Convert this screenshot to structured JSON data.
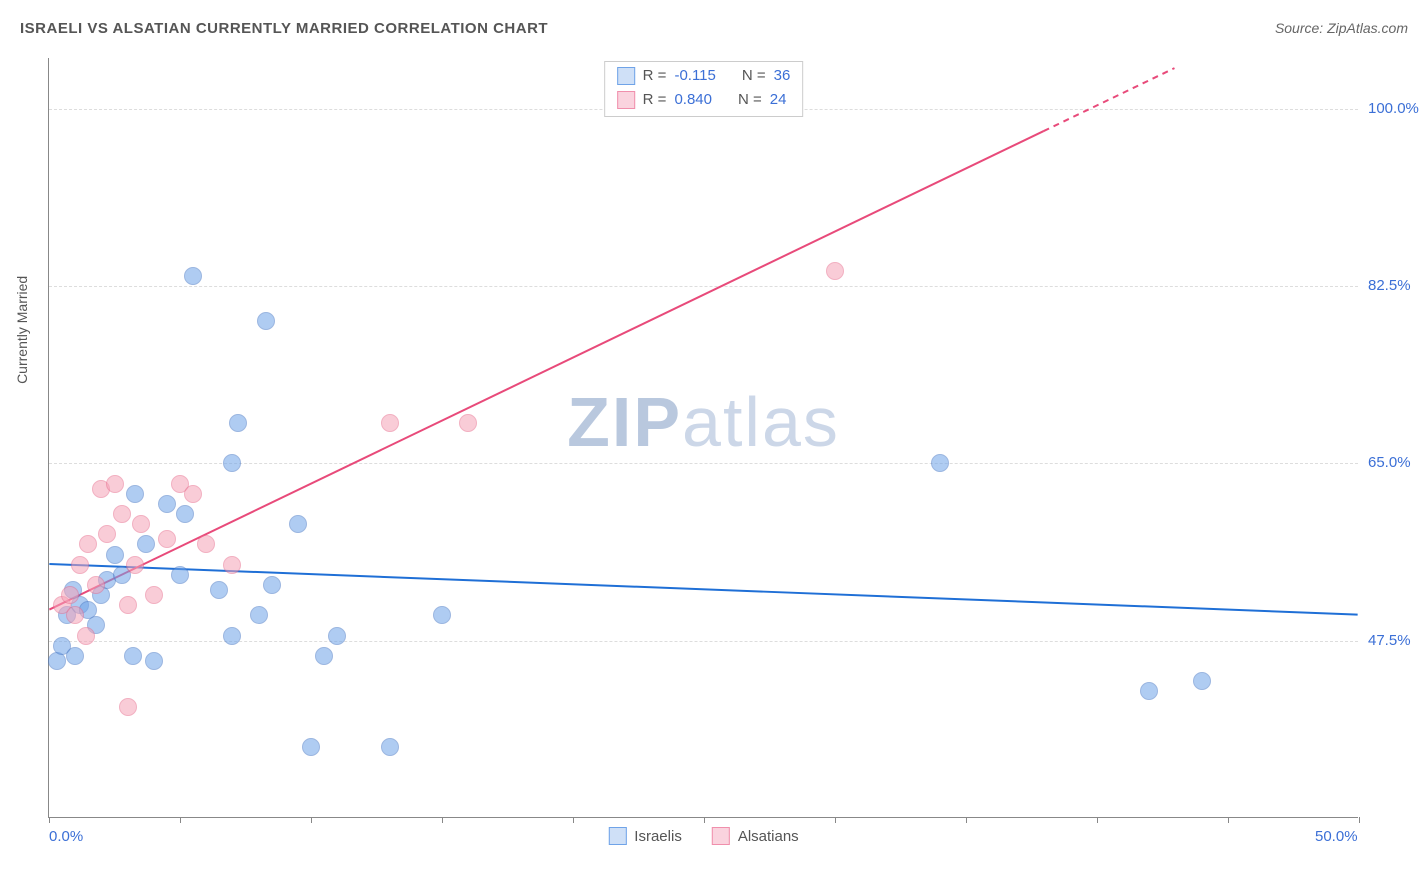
{
  "title": "ISRAELI VS ALSATIAN CURRENTLY MARRIED CORRELATION CHART",
  "source_label": "Source: ZipAtlas.com",
  "y_axis_label": "Currently Married",
  "watermark": {
    "bold": "ZIP",
    "rest": "atlas"
  },
  "chart": {
    "type": "scatter",
    "background_color": "#ffffff",
    "grid_color": "#dddddd",
    "xlim": [
      0,
      50
    ],
    "ylim": [
      30,
      105
    ],
    "x_ticks": [
      0,
      5,
      10,
      15,
      20,
      25,
      30,
      35,
      40,
      45,
      50
    ],
    "x_tick_labels_shown": {
      "0": "0.0%",
      "50": "50.0%"
    },
    "y_ticks": [
      47.5,
      65.0,
      82.5,
      100.0
    ],
    "y_tick_labels": [
      "47.5%",
      "65.0%",
      "82.5%",
      "100.0%"
    ],
    "point_radius": 9,
    "point_opacity": 0.55,
    "series": [
      {
        "name": "Israelis",
        "color": "#6fa3e8",
        "border_color": "#4a7bc8",
        "R": "-0.115",
        "N": "36",
        "trend": {
          "x1": 0,
          "y1": 55,
          "x2": 50,
          "y2": 50,
          "color": "#1f6fd6",
          "width": 2
        },
        "points": [
          [
            0.3,
            45.5
          ],
          [
            0.5,
            47
          ],
          [
            1,
            46
          ],
          [
            0.7,
            50
          ],
          [
            1.2,
            51
          ],
          [
            1.5,
            50.5
          ],
          [
            2,
            52
          ],
          [
            2.2,
            53.5
          ],
          [
            2.8,
            54
          ],
          [
            3.3,
            62
          ],
          [
            3.2,
            46
          ],
          [
            4,
            45.5
          ],
          [
            4.5,
            61
          ],
          [
            5,
            54
          ],
          [
            5.2,
            60
          ],
          [
            5.5,
            83.5
          ],
          [
            6.5,
            52.5
          ],
          [
            7,
            65
          ],
          [
            7,
            48
          ],
          [
            7.2,
            69
          ],
          [
            8,
            50
          ],
          [
            8.3,
            79
          ],
          [
            8.5,
            53
          ],
          [
            9.5,
            59
          ],
          [
            10,
            37
          ],
          [
            10.5,
            46
          ],
          [
            11,
            48
          ],
          [
            13,
            37
          ],
          [
            15,
            50
          ],
          [
            34,
            65
          ],
          [
            42,
            42.5
          ],
          [
            44,
            43.5
          ],
          [
            2.5,
            56
          ],
          [
            3.7,
            57
          ],
          [
            1.8,
            49
          ],
          [
            0.9,
            52.5
          ]
        ]
      },
      {
        "name": "Alsatians",
        "color": "#f5a3b8",
        "border_color": "#e87090",
        "R": "0.840",
        "N": "24",
        "trend": {
          "x1": 0,
          "y1": 50.5,
          "x2": 43,
          "y2": 104,
          "color": "#e84a7a",
          "width": 2,
          "dashed_after_x": 38
        },
        "points": [
          [
            0.5,
            51
          ],
          [
            0.8,
            52
          ],
          [
            1,
            50
          ],
          [
            1.2,
            55
          ],
          [
            1.5,
            57
          ],
          [
            1.8,
            53
          ],
          [
            2,
            62.5
          ],
          [
            2.2,
            58
          ],
          [
            2.5,
            63
          ],
          [
            2.8,
            60
          ],
          [
            3,
            51
          ],
          [
            3,
            41
          ],
          [
            3.3,
            55
          ],
          [
            3.5,
            59
          ],
          [
            4,
            52
          ],
          [
            4.5,
            57.5
          ],
          [
            5,
            63
          ],
          [
            5.5,
            62
          ],
          [
            6,
            57
          ],
          [
            7,
            55
          ],
          [
            13,
            69
          ],
          [
            16,
            69
          ],
          [
            30,
            84
          ],
          [
            1.4,
            48
          ]
        ]
      }
    ],
    "legend": [
      {
        "label": "Israelis",
        "fill": "#cfe0f7",
        "border": "#6fa3e8"
      },
      {
        "label": "Alsatians",
        "fill": "#fad3de",
        "border": "#f08fac"
      }
    ],
    "stats_swatches": [
      {
        "fill": "#cfe0f7",
        "border": "#6fa3e8"
      },
      {
        "fill": "#fad3de",
        "border": "#f08fac"
      }
    ]
  }
}
